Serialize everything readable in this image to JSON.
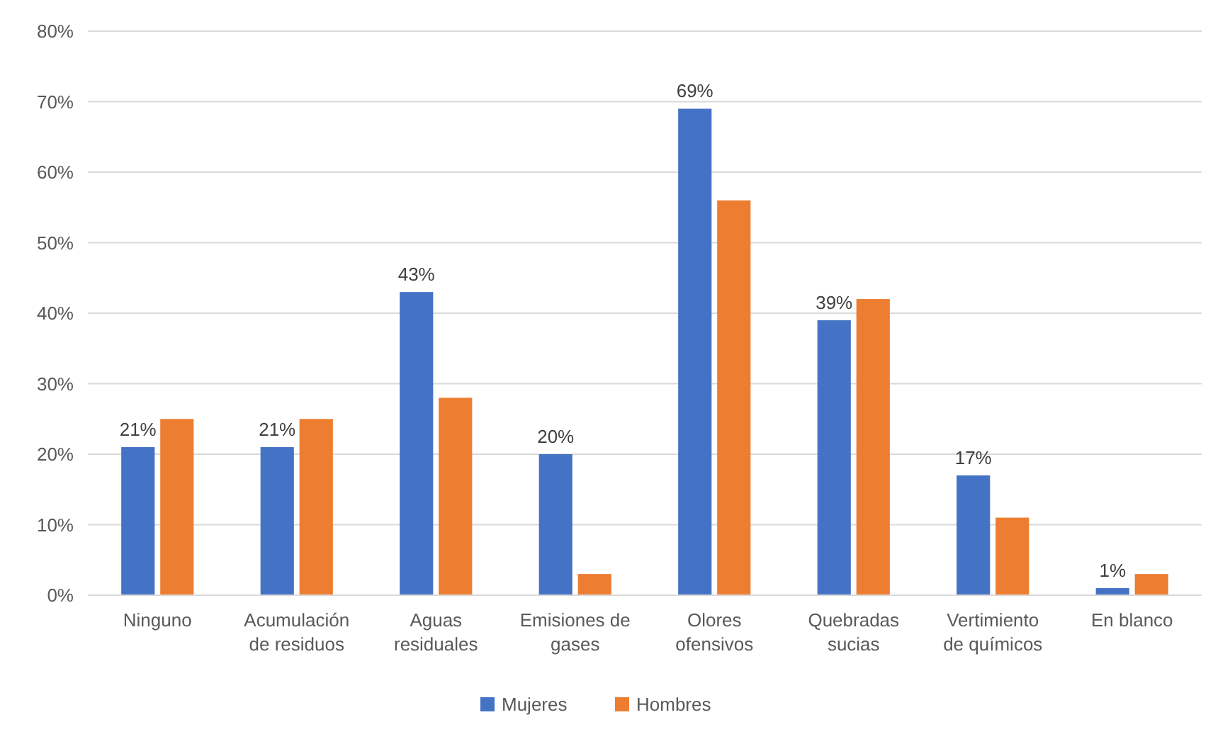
{
  "chart_data": {
    "type": "bar",
    "categories": [
      "Ninguno",
      "Acumulación de residuos",
      "Aguas residuales",
      "Emisiones de gases",
      "Olores ofensivos",
      "Quebradas sucias",
      "Vertimiento de químicos",
      "En blanco"
    ],
    "series": [
      {
        "name": "Mujeres",
        "color": "#4472c4",
        "values": [
          21,
          21,
          43,
          20,
          69,
          39,
          17,
          1
        ],
        "value_labels": [
          "21%",
          "21%",
          "43%",
          "20%",
          "69%",
          "39%",
          "17%",
          "1%"
        ]
      },
      {
        "name": "Hombres",
        "color": "#ed7d31",
        "values": [
          25,
          25,
          28,
          3,
          56,
          42,
          11,
          3
        ]
      }
    ],
    "ylim": [
      0,
      80
    ],
    "yticks": [
      {
        "value": 0,
        "label": "0%"
      },
      {
        "value": 10,
        "label": "10%"
      },
      {
        "value": 20,
        "label": "20%"
      },
      {
        "value": 30,
        "label": "30%"
      },
      {
        "value": 40,
        "label": "40%"
      },
      {
        "value": 50,
        "label": "50%"
      },
      {
        "value": 60,
        "label": "60%"
      },
      {
        "value": 70,
        "label": "70%"
      },
      {
        "value": 80,
        "label": "80%"
      }
    ],
    "grid": "y",
    "legend": "bottom"
  }
}
